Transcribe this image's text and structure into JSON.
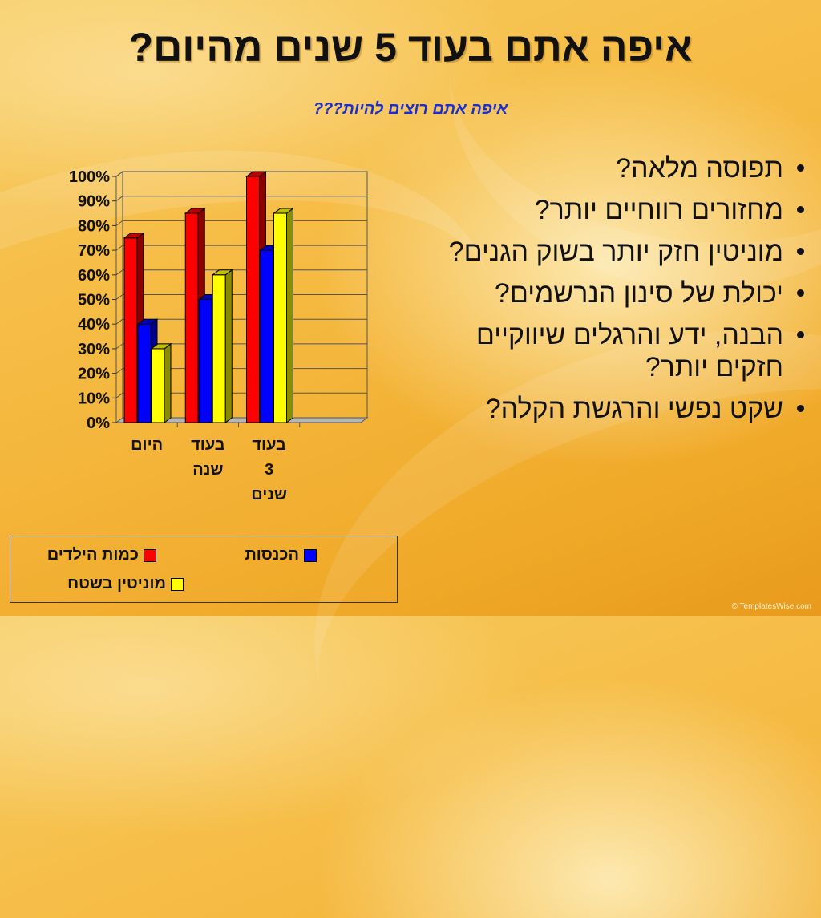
{
  "slide": {
    "title": "איפה אתם בעוד 5 שנים מהיום?",
    "subtitle": "איפה אתם רוצים להיות???",
    "bullets": [
      "תפוסה מלאה?",
      "מחזורים רווחיים יותר?",
      "מוניטין חזק יותר בשוק הגנים?",
      "יכולת של סינון הנרשמים?",
      "הבנה, ידע והרגלים שיווקיים חזקים יותר?",
      "שקט נפשי והרגשת הקלה?"
    ],
    "credit": "© TemplatesWise.com"
  },
  "colors": {
    "series": [
      "#ff0000",
      "#0000ff",
      "#ffff00"
    ],
    "title": "#111111",
    "subtitle": "#1a2fd0"
  },
  "chart_data": {
    "type": "bar",
    "categories": [
      "היום",
      "בעוד שנה",
      "בעוד 3 שנים",
      ""
    ],
    "category_lines": [
      [
        "היום"
      ],
      [
        "בעוד",
        "שנה"
      ],
      [
        "בעוד",
        "3",
        "שנים"
      ],
      []
    ],
    "series": [
      {
        "name": "כמות הילדים",
        "values": [
          75,
          85,
          100,
          null
        ]
      },
      {
        "name": "הכנסות",
        "values": [
          40,
          50,
          70,
          null
        ]
      },
      {
        "name": "מוניטין בשטח",
        "values": [
          30,
          60,
          85,
          null
        ]
      }
    ],
    "ylim": [
      0,
      100
    ],
    "yticks": [
      "0%",
      "10%",
      "20%",
      "30%",
      "40%",
      "50%",
      "60%",
      "70%",
      "80%",
      "90%",
      "100%"
    ],
    "grid": true,
    "legend_position": "bottom"
  }
}
